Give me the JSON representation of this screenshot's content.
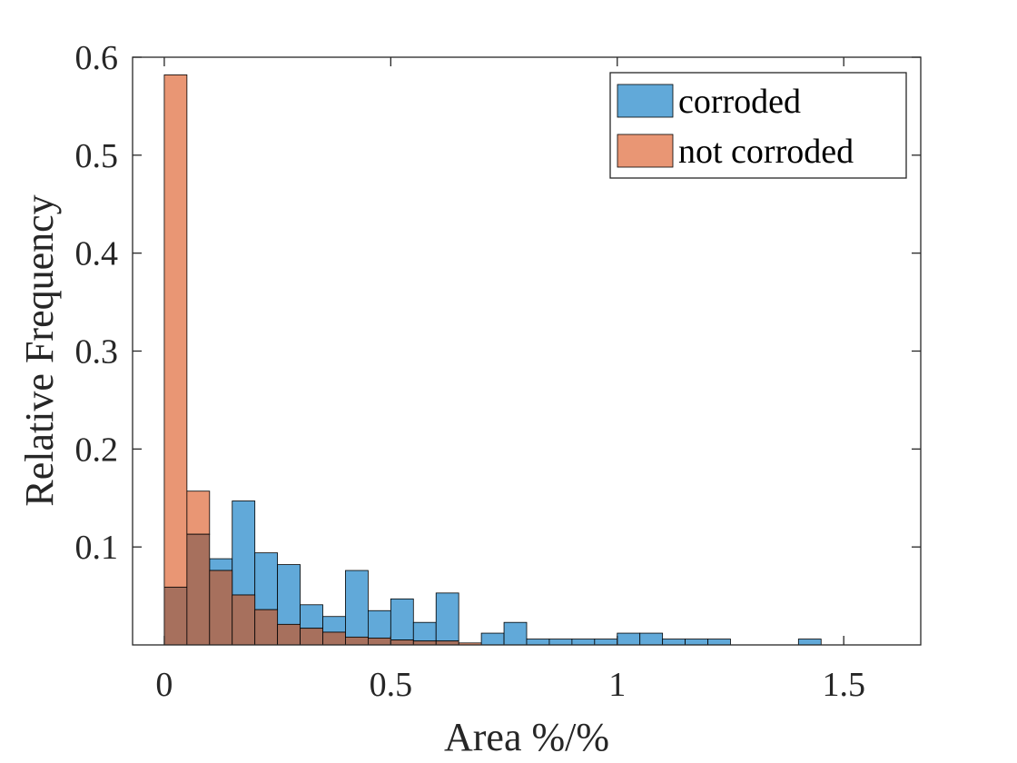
{
  "chart_data": {
    "type": "bar",
    "subtype": "overlapping-histogram",
    "xlabel": "Area %/%",
    "ylabel": "Relative Frequency",
    "xlim": [
      -0.07,
      1.67
    ],
    "ylim": [
      0,
      0.6
    ],
    "x_ticks": [
      0,
      0.5,
      1,
      1.5
    ],
    "x_tick_labels": [
      "0",
      "0.5",
      "1",
      "1.5"
    ],
    "y_ticks": [
      0.1,
      0.2,
      0.3,
      0.4,
      0.5,
      0.6
    ],
    "y_tick_labels": [
      "0.1",
      "0.2",
      "0.3",
      "0.4",
      "0.5",
      "0.6"
    ],
    "bin_width": 0.05,
    "bin_start": 0,
    "grid": false,
    "legend_position": "top-right",
    "series": [
      {
        "name": "corroded",
        "color": "#61A9D9",
        "values": [
          0.059,
          0.113,
          0.088,
          0.147,
          0.094,
          0.082,
          0.041,
          0.029,
          0.076,
          0.035,
          0.047,
          0.023,
          0.053,
          0,
          0.012,
          0.023,
          0.006,
          0.006,
          0.006,
          0.006,
          0.012,
          0.012,
          0.006,
          0.006,
          0.006,
          0,
          0,
          0,
          0.006,
          0,
          0,
          0
        ]
      },
      {
        "name": "not corroded",
        "color": "#E99674",
        "values": [
          0.582,
          0.157,
          0.076,
          0.051,
          0.036,
          0.021,
          0.017,
          0.013,
          0.008,
          0.007,
          0.005,
          0.004,
          0.004,
          0.002,
          0,
          0,
          0,
          0,
          0,
          0,
          0,
          0,
          0,
          0,
          0,
          0,
          0,
          0,
          0,
          0,
          0,
          0
        ]
      }
    ],
    "overlap_color": "#A7705D"
  }
}
